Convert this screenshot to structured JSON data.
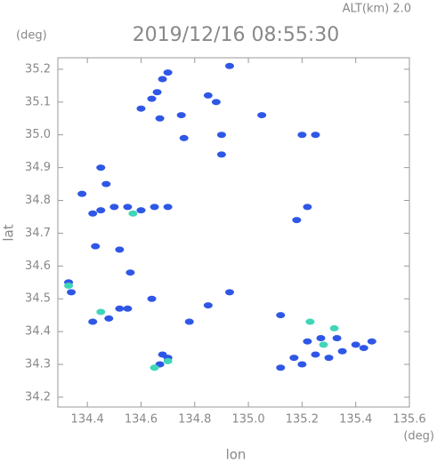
{
  "chart_data": {
    "type": "scatter",
    "header_right": "ALT(km) 2.0",
    "y_unit": "(deg)",
    "title": "2019/12/16 08:55:30",
    "ylabel": "lat",
    "xlabel": "lon",
    "x_unit": "(deg)",
    "xlim": [
      134.29,
      135.6
    ],
    "ylim": [
      34.17,
      35.235
    ],
    "xticks": [
      134.4,
      134.6,
      134.8,
      {
        "value": 135.0,
        "label": "135.0"
      },
      135.2,
      135.4,
      135.6
    ],
    "yticks": [
      34.2,
      34.3,
      34.4,
      34.5,
      34.6,
      34.7,
      34.8,
      34.9,
      {
        "value": 35.0,
        "label": "35.0"
      },
      35.1,
      35.2
    ],
    "series": [
      {
        "color": "#2f57e6",
        "x": [
          134.33,
          134.34,
          134.42,
          134.48,
          134.52,
          134.55,
          134.64,
          134.6,
          134.55,
          134.5,
          134.45,
          134.42,
          134.65,
          134.7,
          134.68,
          134.7,
          134.7,
          134.68,
          134.66,
          134.64,
          134.6,
          134.67,
          134.75,
          134.76,
          134.93,
          134.88,
          134.85,
          134.9,
          135.05,
          135.25,
          135.2,
          134.9,
          134.45,
          134.47,
          134.38,
          134.43,
          134.52,
          135.22,
          135.18,
          134.93,
          134.85,
          134.78,
          135.2,
          135.25,
          135.3,
          135.22,
          135.27,
          135.35,
          135.43,
          135.46,
          135.4,
          135.33,
          135.17,
          134.67,
          135.12,
          135.12,
          134.56
        ],
        "y": [
          34.55,
          34.52,
          34.43,
          34.44,
          34.47,
          34.47,
          34.5,
          34.77,
          34.78,
          34.78,
          34.77,
          34.76,
          34.78,
          34.78,
          34.33,
          34.32,
          35.19,
          35.17,
          35.13,
          35.11,
          35.08,
          35.05,
          35.06,
          34.99,
          35.21,
          35.1,
          35.12,
          35.0,
          35.06,
          35.0,
          35.0,
          34.94,
          34.9,
          34.85,
          34.82,
          34.66,
          34.65,
          34.78,
          34.74,
          34.52,
          34.48,
          34.43,
          34.3,
          34.33,
          34.32,
          34.37,
          34.38,
          34.34,
          34.35,
          34.37,
          34.36,
          34.38,
          34.32,
          34.3,
          34.45,
          34.29,
          34.58
        ]
      },
      {
        "color": "#3fd6b8",
        "x": [
          134.45,
          134.57,
          134.7,
          135.28,
          135.32,
          135.23,
          134.33,
          134.65
        ],
        "y": [
          34.46,
          34.76,
          34.31,
          34.36,
          34.41,
          34.43,
          34.54,
          34.29
        ]
      }
    ]
  }
}
